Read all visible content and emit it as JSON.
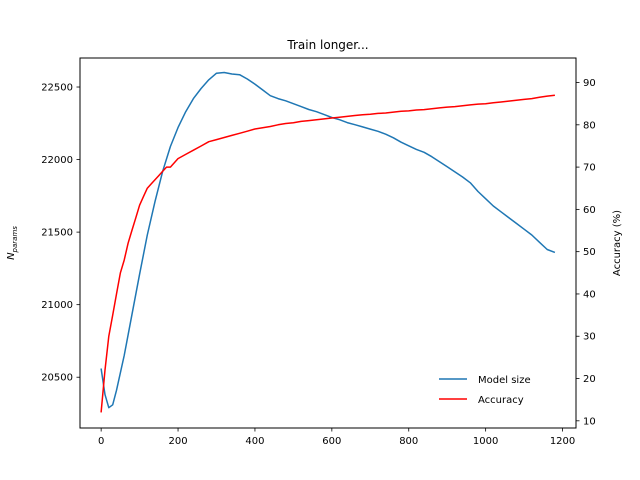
{
  "chart_data": {
    "type": "line",
    "title": "Train longer...",
    "xlabel": "",
    "ylabel_left": "N",
    "ylabel_left_sub": "params",
    "ylabel_right": "Accuracy (%)",
    "xlim": [
      -55,
      1235
    ],
    "ylim_left": [
      20150,
      22700
    ],
    "ylim_right": [
      8.3,
      95.8
    ],
    "x_ticks": [
      0,
      200,
      400,
      600,
      800,
      1000,
      1200
    ],
    "y_left_ticks": [
      20500,
      21000,
      21500,
      22000,
      22500
    ],
    "y_right_ticks": [
      10,
      20,
      30,
      40,
      50,
      60,
      70,
      80,
      90
    ],
    "grid": false,
    "legend_position": "lower-right",
    "series": [
      {
        "name": "Model size",
        "axis": "left",
        "color": "#1f77b4",
        "x": [
          0,
          10,
          20,
          30,
          40,
          60,
          80,
          100,
          120,
          140,
          160,
          180,
          200,
          220,
          240,
          260,
          280,
          300,
          320,
          340,
          360,
          380,
          400,
          420,
          440,
          460,
          480,
          500,
          520,
          540,
          560,
          580,
          600,
          620,
          640,
          660,
          680,
          700,
          720,
          740,
          760,
          780,
          800,
          820,
          840,
          860,
          880,
          900,
          920,
          940,
          960,
          980,
          1000,
          1020,
          1040,
          1060,
          1080,
          1100,
          1120,
          1140,
          1160,
          1180
        ],
        "y": [
          20560,
          20380,
          20290,
          20310,
          20410,
          20650,
          20930,
          21210,
          21480,
          21710,
          21920,
          22090,
          22220,
          22330,
          22420,
          22490,
          22550,
          22595,
          22600,
          22590,
          22585,
          22555,
          22520,
          22480,
          22440,
          22420,
          22405,
          22385,
          22365,
          22345,
          22330,
          22310,
          22290,
          22275,
          22255,
          22240,
          22225,
          22210,
          22195,
          22175,
          22150,
          22120,
          22095,
          22070,
          22050,
          22020,
          21985,
          21950,
          21915,
          21880,
          21840,
          21780,
          21730,
          21680,
          21640,
          21600,
          21560,
          21520,
          21480,
          21430,
          21380,
          21360
        ]
      },
      {
        "name": "Accuracy",
        "axis": "right",
        "color": "#ff0000",
        "x": [
          0,
          10,
          20,
          30,
          40,
          50,
          60,
          70,
          80,
          90,
          100,
          110,
          120,
          130,
          140,
          150,
          160,
          170,
          180,
          190,
          200,
          220,
          240,
          260,
          280,
          300,
          320,
          340,
          360,
          380,
          400,
          420,
          440,
          460,
          480,
          500,
          520,
          540,
          560,
          580,
          600,
          620,
          640,
          660,
          680,
          700,
          720,
          740,
          760,
          780,
          800,
          820,
          840,
          860,
          880,
          900,
          920,
          940,
          960,
          980,
          1000,
          1020,
          1040,
          1060,
          1080,
          1100,
          1120,
          1140,
          1160,
          1180
        ],
        "y": [
          12,
          22,
          30,
          35,
          40,
          45,
          48,
          52,
          55,
          58,
          61,
          63,
          65,
          66,
          67,
          68,
          69,
          70,
          70,
          71,
          72,
          73,
          74,
          75,
          76,
          76.5,
          77,
          77.5,
          78,
          78.5,
          79,
          79.3,
          79.6,
          80,
          80.3,
          80.5,
          80.8,
          81,
          81.2,
          81.4,
          81.6,
          81.8,
          82,
          82.2,
          82.4,
          82.5,
          82.7,
          82.8,
          83,
          83.2,
          83.3,
          83.5,
          83.6,
          83.8,
          84,
          84.2,
          84.3,
          84.5,
          84.7,
          84.9,
          85,
          85.2,
          85.4,
          85.6,
          85.8,
          86,
          86.2,
          86.5,
          86.8,
          87
        ]
      }
    ]
  }
}
